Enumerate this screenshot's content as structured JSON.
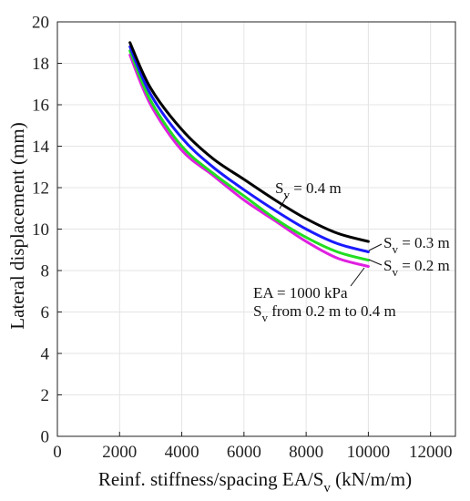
{
  "chart_data": {
    "type": "line",
    "xlabel": "Reinf. stiffness/spacing EA/S",
    "xlabel_sub": "v",
    "xlabel_tail": " (kN/m/m)",
    "ylabel": "Lateral displacement (mm)",
    "xlim": [
      0,
      12800
    ],
    "ylim": [
      0,
      20
    ],
    "x_ticks": [
      0,
      2000,
      4000,
      6000,
      8000,
      10000,
      12000
    ],
    "y_ticks": [
      0,
      2,
      4,
      6,
      8,
      10,
      12,
      14,
      16,
      18,
      20
    ],
    "grid": true,
    "series": [
      {
        "color": "#000000",
        "x": [
          2333,
          3000,
          4000,
          5000,
          6000,
          7000,
          8000,
          9000,
          10000
        ],
        "y": [
          19.0,
          16.8,
          14.8,
          13.4,
          12.4,
          11.4,
          10.5,
          9.8,
          9.4
        ]
      },
      {
        "color": "#1a1aff",
        "x": [
          2333,
          3000,
          4000,
          5000,
          6000,
          7000,
          8000,
          9000,
          10000
        ],
        "y": [
          18.8,
          16.5,
          14.4,
          13.0,
          11.9,
          10.9,
          10.0,
          9.3,
          8.9
        ]
      },
      {
        "color": "#22dd22",
        "x": [
          2333,
          3000,
          4000,
          5000,
          6000,
          7000,
          8000,
          9000,
          10000
        ],
        "y": [
          18.6,
          16.2,
          14.0,
          12.7,
          11.6,
          10.5,
          9.6,
          8.9,
          8.5
        ]
      },
      {
        "color": "#e020e0",
        "x": [
          2333,
          3000,
          4000,
          5000,
          6000,
          7000,
          8000,
          9000,
          10000
        ],
        "y": [
          18.4,
          16.0,
          13.8,
          12.6,
          11.4,
          10.4,
          9.4,
          8.6,
          8.2
        ]
      }
    ],
    "annotations": [
      {
        "text": "S",
        "sub": "v",
        "tail": " = 0.4 m"
      },
      {
        "text": "S",
        "sub": "v",
        "tail": " = 0.3 m"
      },
      {
        "text": "S",
        "sub": "v",
        "tail": " = 0.2 m"
      },
      {
        "text": "EA = 1000 kPa",
        "line2_text": "S",
        "line2_sub": "v",
        "line2_tail": " from 0.2 m to 0.4 m"
      }
    ]
  }
}
